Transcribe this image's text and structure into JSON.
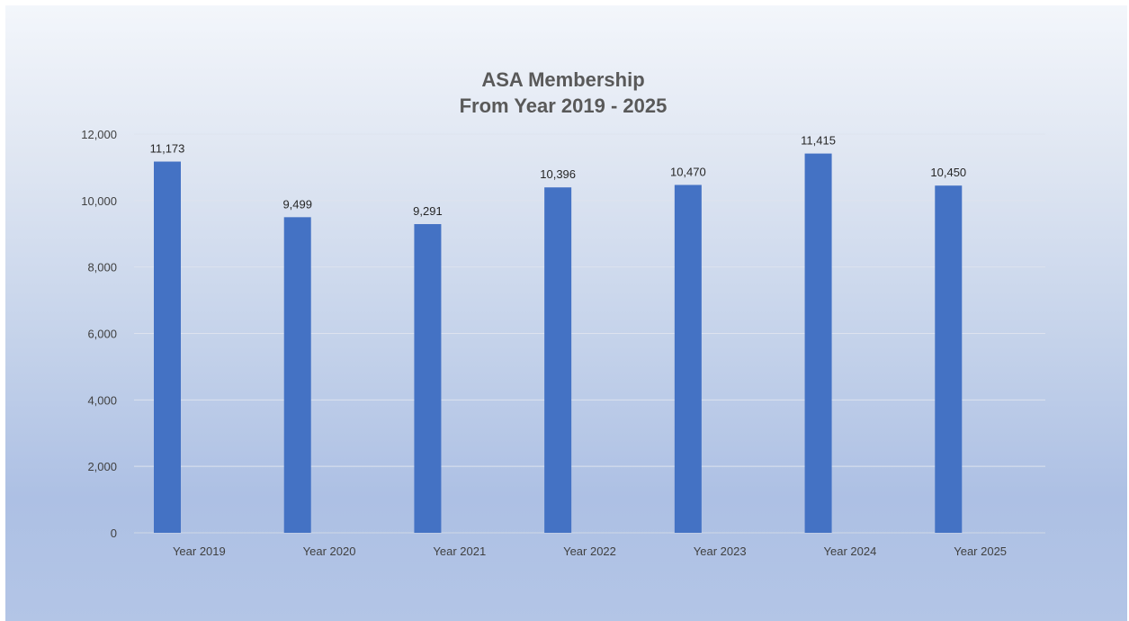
{
  "chart_data": {
    "type": "bar",
    "title_lines": [
      "ASA Membership",
      "From Year 2019 - 2025"
    ],
    "categories": [
      "Year 2019",
      "Year 2020",
      "Year 2021",
      "Year 2022",
      "Year 2023",
      "Year 2024",
      "Year 2025"
    ],
    "values": [
      11173,
      9499,
      9291,
      10396,
      10470,
      11415,
      10450
    ],
    "data_labels": [
      "11,173",
      "9,499",
      "9,291",
      "10,396",
      "10,470",
      "11,415",
      "10,450"
    ],
    "y_ticks": [
      "0",
      "2,000",
      "4,000",
      "6,000",
      "8,000",
      "10,000",
      "12,000"
    ],
    "ylim": [
      0,
      12000
    ],
    "y_step": 2000,
    "xlabel": "",
    "ylabel": "",
    "grid": true,
    "legend": "none",
    "bar_color": "#4472c4"
  }
}
